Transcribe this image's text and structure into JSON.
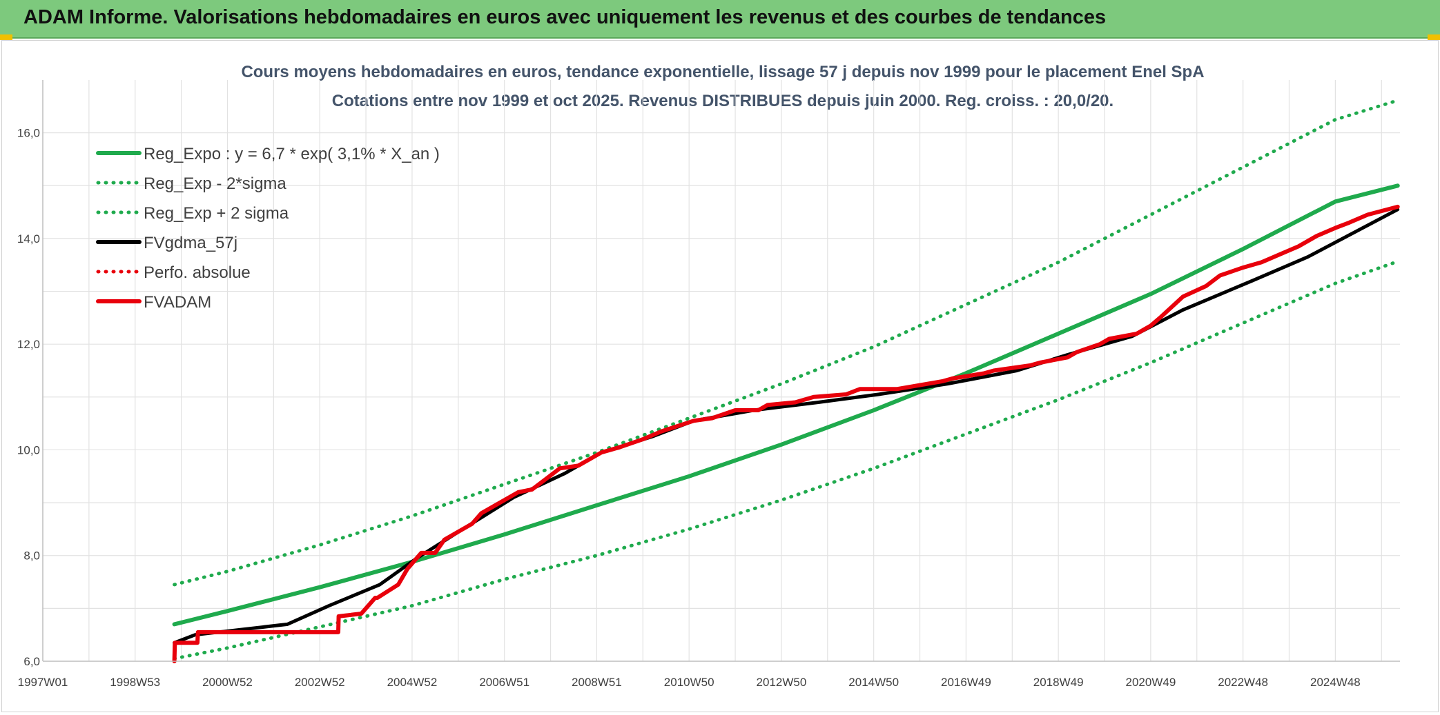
{
  "header": {
    "title": "ADAM Informe. Valorisations hebdomadaires en euros avec uniquement les revenus et des courbes de tendances"
  },
  "colors": {
    "banner": "#7dc97d",
    "green": "#1faa4d",
    "red": "#e8000b",
    "black": "#000000"
  },
  "chart_data": {
    "type": "line",
    "title": "Cours moyens hebdomadaires en euros, tendance exponentielle, lissage 57 j depuis nov 1999 pour le placement Enel SpA",
    "subtitle": "Cotations entre nov 1999 et oct 2025. Revenus DISTRIBUES depuis juin 2000. Reg. croiss. : 20,0/20.",
    "xlabel": "",
    "ylabel": "",
    "x_tick_labels": [
      "1997W01",
      "1998W53",
      "2000W52",
      "2002W52",
      "2004W52",
      "2006W51",
      "2008W51",
      "2010W50",
      "2012W50",
      "2014W50",
      "2016W49",
      "2018W49",
      "2020W49",
      "2022W48",
      "2024W48"
    ],
    "x_ticks": [
      1997.0,
      1999.0,
      2001.0,
      2003.0,
      2005.0,
      2007.0,
      2009.0,
      2011.0,
      2013.0,
      2015.0,
      2017.0,
      2019.0,
      2021.0,
      2023.0,
      2025.0
    ],
    "xlim": [
      1997.0,
      2026.4
    ],
    "y_tick_labels": [
      "6,0",
      "8,0",
      "10,0",
      "12,0",
      "14,0",
      "16,0"
    ],
    "y_ticks": [
      6,
      8,
      10,
      12,
      14,
      16
    ],
    "ylim": [
      6,
      17
    ],
    "grid": true,
    "legend_position": "top-left",
    "series": [
      {
        "name": "Reg_Expo : y = 6,7 * exp( 3,1% *  X_an )",
        "style": "solid",
        "color": "#1faa4d",
        "x": [
          1999.85,
          2001.0,
          2003.0,
          2005.0,
          2007.0,
          2009.0,
          2011.0,
          2013.0,
          2015.0,
          2017.0,
          2019.0,
          2021.0,
          2023.0,
          2025.0,
          2026.35
        ],
        "y": [
          6.7,
          6.95,
          7.4,
          7.88,
          8.4,
          8.95,
          9.5,
          10.1,
          10.75,
          11.45,
          12.2,
          12.95,
          13.8,
          14.7,
          15.0
        ]
      },
      {
        "name": "Reg_Exp - 2*sigma",
        "style": "dotted",
        "color": "#1faa4d",
        "x": [
          1999.85,
          2001.0,
          2003.0,
          2005.0,
          2007.0,
          2009.0,
          2011.0,
          2013.0,
          2015.0,
          2017.0,
          2019.0,
          2021.0,
          2023.0,
          2025.0,
          2026.3
        ],
        "y": [
          6.05,
          6.25,
          6.65,
          7.05,
          7.55,
          8.0,
          8.5,
          9.05,
          9.65,
          10.3,
          10.95,
          11.65,
          12.4,
          13.15,
          13.55
        ]
      },
      {
        "name": "Reg_Exp + 2 sigma",
        "style": "dotted",
        "color": "#1faa4d",
        "x": [
          1999.85,
          2001.0,
          2003.0,
          2005.0,
          2007.0,
          2009.0,
          2011.0,
          2013.0,
          2015.0,
          2017.0,
          2019.0,
          2021.0,
          2023.0,
          2025.0,
          2026.3
        ],
        "y": [
          7.45,
          7.7,
          8.2,
          8.75,
          9.35,
          9.95,
          10.6,
          11.25,
          11.95,
          12.75,
          13.55,
          14.45,
          15.35,
          16.25,
          16.6
        ]
      },
      {
        "name": "FVgdma_57j",
        "style": "solid",
        "color": "#000000",
        "x": [
          1999.85,
          2000.3,
          2002.3,
          2003.2,
          2004.3,
          2005.1,
          2006.1,
          2007.2,
          2008.3,
          2009.1,
          2010.2,
          2011.1,
          2012.4,
          2013.8,
          2015.1,
          2016.6,
          2018.1,
          2019.2,
          2020.6,
          2021.7,
          2023.2,
          2024.4,
          2025.7,
          2026.35
        ],
        "y": [
          6.35,
          6.5,
          6.7,
          7.05,
          7.45,
          7.95,
          8.5,
          9.1,
          9.55,
          9.95,
          10.25,
          10.55,
          10.75,
          10.9,
          11.05,
          11.25,
          11.5,
          11.8,
          12.15,
          12.65,
          13.2,
          13.65,
          14.25,
          14.55
        ]
      },
      {
        "name": "Perfo. absolue",
        "style": "dotted",
        "color": "#e8000b",
        "x": [
          1999.85,
          1999.86
        ],
        "y": [
          6.0,
          6.35
        ]
      },
      {
        "name": "FVADAM",
        "style": "solid",
        "color": "#e8000b",
        "x": [
          1999.85,
          1999.86,
          2000.35,
          2000.36,
          2003.4,
          2003.41,
          2003.9,
          2004.2,
          2004.25,
          2004.7,
          2004.9,
          2005.2,
          2005.5,
          2005.7,
          2006.3,
          2006.5,
          2006.9,
          2007.3,
          2007.6,
          2007.9,
          2008.2,
          2008.6,
          2009.1,
          2009.5,
          2010.0,
          2010.4,
          2011.1,
          2011.5,
          2012.0,
          2012.5,
          2012.7,
          2013.3,
          2013.7,
          2014.4,
          2014.7,
          2015.5,
          2016.5,
          2016.7,
          2017.4,
          2017.6,
          2018.4,
          2018.6,
          2019.2,
          2019.4,
          2019.9,
          2020.1,
          2020.7,
          2021.0,
          2021.2,
          2021.7,
          2022.2,
          2022.5,
          2023.0,
          2023.4,
          2023.8,
          2024.2,
          2024.6,
          2025.0,
          2025.3,
          2025.7,
          2026.35
        ],
        "y": [
          6.0,
          6.35,
          6.35,
          6.55,
          6.55,
          6.85,
          6.9,
          7.2,
          7.2,
          7.45,
          7.75,
          8.05,
          8.05,
          8.3,
          8.6,
          8.8,
          9.0,
          9.2,
          9.25,
          9.45,
          9.65,
          9.7,
          9.95,
          10.05,
          10.2,
          10.35,
          10.55,
          10.6,
          10.75,
          10.75,
          10.85,
          10.9,
          11.0,
          11.05,
          11.15,
          11.15,
          11.3,
          11.35,
          11.45,
          11.5,
          11.6,
          11.65,
          11.75,
          11.85,
          12.0,
          12.1,
          12.2,
          12.35,
          12.5,
          12.9,
          13.1,
          13.3,
          13.45,
          13.55,
          13.7,
          13.85,
          14.05,
          14.2,
          14.3,
          14.45,
          14.6
        ]
      }
    ]
  }
}
